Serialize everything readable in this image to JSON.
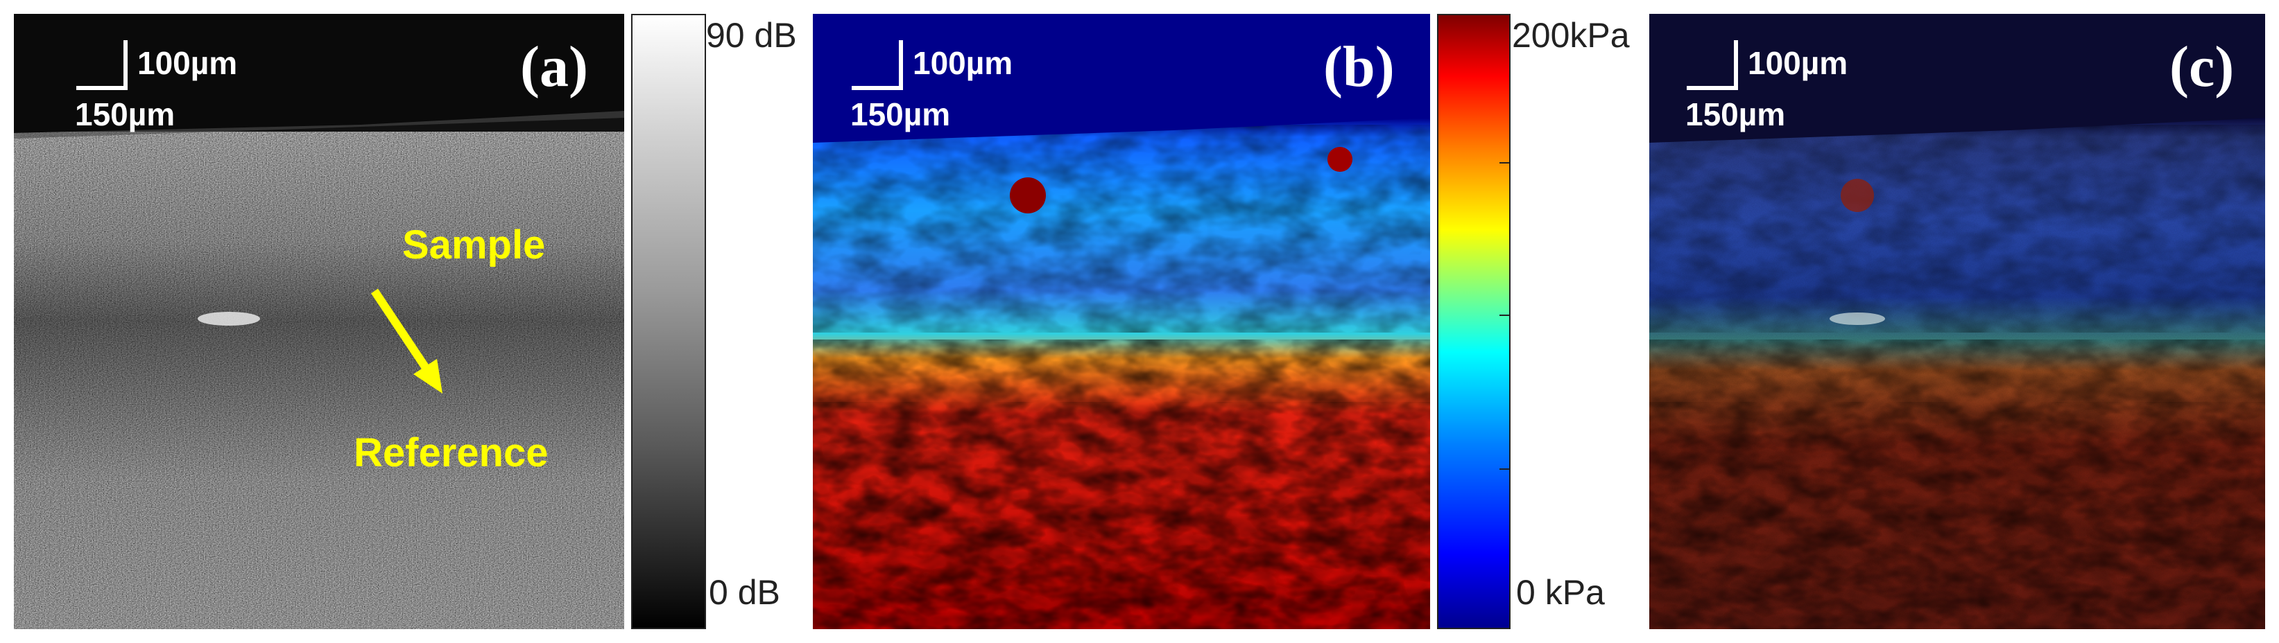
{
  "panels": [
    {
      "label": "(a)",
      "scalebar_vertical": "100µm",
      "scalebar_horizontal": "150µm",
      "annotations": {
        "sample": "Sample",
        "reference": "Reference"
      }
    },
    {
      "label": "(b)",
      "scalebar_vertical": "100µm",
      "scalebar_horizontal": "150µm"
    },
    {
      "label": "(c)",
      "scalebar_vertical": "100µm",
      "scalebar_horizontal": "150µm"
    }
  ],
  "colorbars": {
    "grayscale": {
      "max_label": "90 dB",
      "min_label": "0 dB"
    },
    "jet": {
      "max_label": "200kPa",
      "min_label": "0 kPa"
    }
  },
  "colors": {
    "annotation": "#ffff00",
    "background_top": "#00008b",
    "scalebar": "#ffffff"
  }
}
